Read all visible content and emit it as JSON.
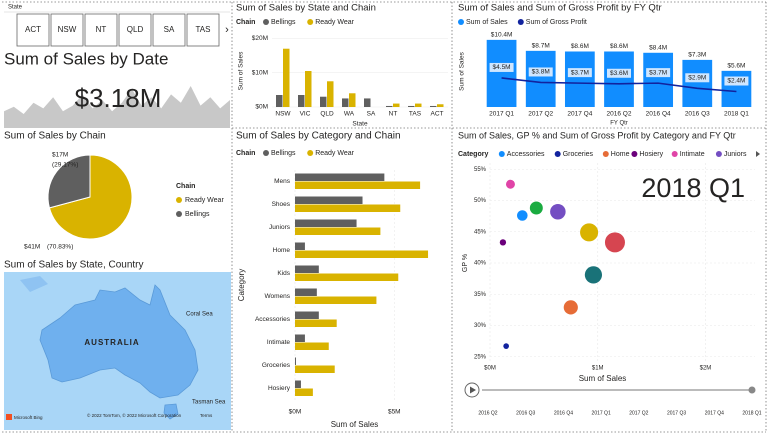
{
  "slicer": {
    "title": "State",
    "items": [
      "ACT",
      "NSW",
      "NT",
      "QLD",
      "SA",
      "TAS"
    ]
  },
  "map": {
    "title": "Sum of Sales by State, Country",
    "country": "AUSTRALIA",
    "coral_sea": "Coral Sea",
    "tasman_sea": "Tasman Sea",
    "attribution": "© 2022 TomTom, © 2022 Microsoft Corporation",
    "terms": "Terms",
    "brand": "Microsoft Bing"
  },
  "chart_data": [
    {
      "type": "area",
      "title": "Sum of Sales by Date",
      "card_value": "$3.18M",
      "color": "#c8c8c8",
      "ylim": [
        0,
        100
      ],
      "values": [
        30,
        38,
        25,
        45,
        35,
        55,
        30,
        40,
        60,
        35,
        50,
        30,
        45,
        70,
        40,
        55,
        35,
        60,
        45,
        75,
        40,
        55,
        35,
        50
      ]
    },
    {
      "type": "bar",
      "title": "Sum of Sales by State and Chain",
      "legend_title": "Chain",
      "xlabel": "State",
      "ylabel": "Sum of Sales",
      "categories": [
        "NSW",
        "VIC",
        "QLD",
        "WA",
        "SA",
        "NT",
        "TAS",
        "ACT"
      ],
      "series": [
        {
          "name": "Bellings",
          "color": "#5f5f5f",
          "values": [
            3500000,
            3500000,
            3000000,
            2500000,
            2500000,
            300000,
            300000,
            300000
          ]
        },
        {
          "name": "Ready Wear",
          "color": "#d9b300",
          "values": [
            17000000,
            10500000,
            7500000,
            4000000,
            0,
            1000000,
            1000000,
            800000
          ]
        }
      ],
      "ylim": [
        0,
        21000000
      ],
      "yticks": [
        {
          "value": 0,
          "label": "$0M"
        },
        {
          "value": 10000000,
          "label": "$10M"
        },
        {
          "value": 20000000,
          "label": "$20M"
        }
      ],
      "grid": true
    },
    {
      "type": "combo",
      "title": "Sum of Sales and Sum of Gross Profit by FY Qtr",
      "xlabel": "FY Qtr",
      "ylabel": "Sum of Sales",
      "categories": [
        "2017 Q1",
        "2017 Q2",
        "2017 Q4",
        "2016 Q2",
        "2016 Q4",
        "2016 Q3",
        "2018 Q1"
      ],
      "ylim": [
        0,
        11000000
      ],
      "series": [
        {
          "name": "Sum of Sales",
          "color": "#118dff",
          "kind": "bar",
          "values": [
            10400000,
            8700000,
            8600000,
            8600000,
            8400000,
            7300000,
            5600000
          ],
          "value_labels": [
            "$10.4M",
            "$8.7M",
            "$8.6M",
            "$8.6M",
            "$8.4M",
            "$7.3M",
            "$5.6M"
          ]
        },
        {
          "name": "Sum of Gross Profit",
          "color": "#12239e",
          "kind": "line",
          "values": [
            4500000,
            3800000,
            3700000,
            3600000,
            3700000,
            2900000,
            2400000
          ],
          "value_labels": [
            "$4.5M",
            "$3.8M",
            "$3.7M",
            "$3.6M",
            "$3.7M",
            "$2.9M",
            "$2.4M"
          ]
        }
      ]
    },
    {
      "type": "pie",
      "title": "Sum of Sales by Chain",
      "legend_title": "Chain",
      "categories": [
        "Ready Wear",
        "Bellings"
      ],
      "colors": [
        "#d9b300",
        "#5f5f5f"
      ],
      "values": [
        70.83,
        29.17
      ],
      "value_labels": [
        "(70.83%)",
        "(29.17%)"
      ],
      "amount_labels": [
        "$41M",
        "$17M"
      ]
    },
    {
      "type": "hbar",
      "title": "Sum of Sales by Category and Chain",
      "legend_title": "Chain",
      "xlabel": "Sum of Sales",
      "ylabel": "Category",
      "categories": [
        "Mens",
        "Shoes",
        "Juniors",
        "Home",
        "Kids",
        "Womens",
        "Accessories",
        "Intimate",
        "Groceries",
        "Hosiery"
      ],
      "series": [
        {
          "name": "Bellings",
          "color": "#5f5f5f",
          "values": [
            4500000,
            3400000,
            3100000,
            500000,
            1200000,
            1100000,
            1200000,
            500000,
            50000,
            300000
          ]
        },
        {
          "name": "Ready Wear",
          "color": "#d9b300",
          "values": [
            6300000,
            5300000,
            4300000,
            6700000,
            5200000,
            4100000,
            2100000,
            1700000,
            2000000,
            900000
          ]
        }
      ],
      "xlim": [
        0,
        7000000
      ],
      "xticks": [
        {
          "value": 0,
          "label": "$0M"
        },
        {
          "value": 5000000,
          "label": "$5M"
        }
      ],
      "grid": true
    },
    {
      "type": "scatter",
      "title": "Sum of Sales, GP % and Sum of Gross Profit by Category and FY Qtr",
      "legend_title": "Category",
      "xlabel": "Sum of Sales",
      "ylabel": "GP %",
      "annotation": "2018 Q1",
      "categories": [
        "Accessories",
        "Groceries",
        "Home",
        "Hosiery",
        "Intimate",
        "Juniors",
        null,
        null,
        null,
        null
      ],
      "colors": [
        "#118dff",
        "#12239e",
        "#e66c37",
        "#6b007b",
        "#e044a7",
        "#744ec2",
        "#d9b300",
        "#d64550",
        "#197278",
        "#1aab40"
      ],
      "x": [
        300000,
        150000,
        750000,
        120000,
        190000,
        630000,
        920000,
        1160000,
        960000,
        430000
      ],
      "values": [
        47.6,
        26.7,
        32.9,
        43.3,
        52.6,
        48.2,
        44.9,
        43.3,
        38.1,
        48.8
      ],
      "sizes": [
        140000,
        40000,
        250000,
        50000,
        100000,
        300000,
        410000,
        500000,
        370000,
        210000
      ],
      "xlim": [
        0,
        2460000
      ],
      "ylim": [
        24,
        56
      ],
      "xticks": [
        {
          "value": 0,
          "label": "$0M"
        },
        {
          "value": 1000000,
          "label": "$1M"
        },
        {
          "value": 2000000,
          "label": "$2M"
        }
      ],
      "yticks": [
        {
          "value": 25,
          "label": "25%"
        },
        {
          "value": 30,
          "label": "30%"
        },
        {
          "value": 35,
          "label": "35%"
        },
        {
          "value": 40,
          "label": "40%"
        },
        {
          "value": 45,
          "label": "45%"
        },
        {
          "value": 50,
          "label": "50%"
        },
        {
          "value": 55,
          "label": "55%"
        }
      ],
      "grid": true,
      "play_axis": [
        "2016 Q2",
        "2016 Q3",
        "2016 Q4",
        "2017 Q1",
        "2017 Q2",
        "2017 Q3",
        "2017 Q4",
        "2018 Q1"
      ]
    }
  ]
}
